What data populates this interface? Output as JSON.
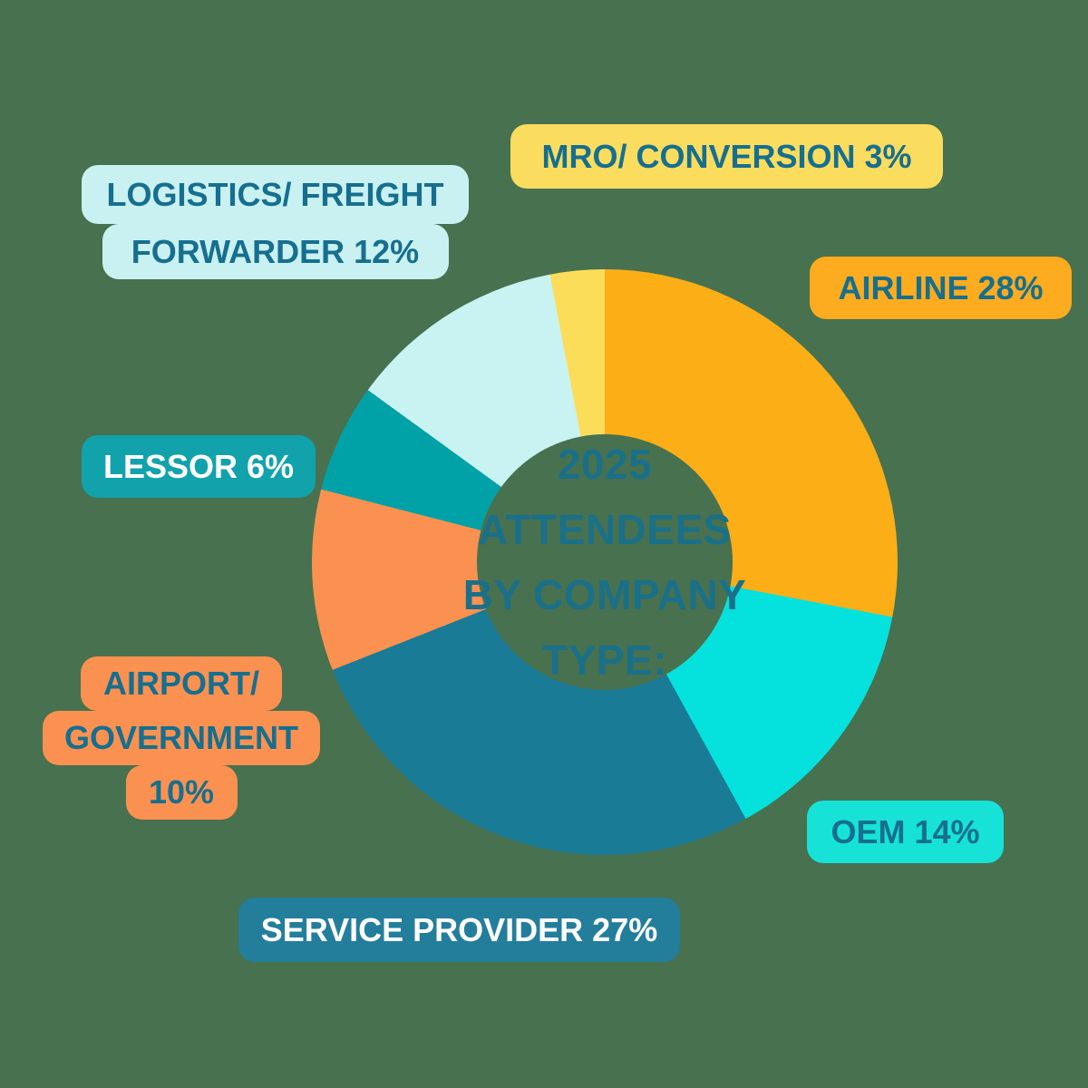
{
  "background_color": "#48714F",
  "text_colors": {
    "dark_teal": "#166F8F",
    "white": "#FFFFFF",
    "center": "#1A7089"
  },
  "chart_data": {
    "type": "pie",
    "donut": true,
    "title": "2025 ATTENDEES BY COMPANY TYPE:",
    "center_text_lines": [
      "2025",
      "ATTENDEES",
      "BY COMPANY",
      "TYPE:"
    ],
    "start_angle_deg": 0,
    "direction": "clockwise",
    "unit": "%",
    "segments": [
      {
        "label": "AIRLINE",
        "value": 28,
        "color": "#FCAE16"
      },
      {
        "label": "OEM",
        "value": 14,
        "color": "#05E1DC"
      },
      {
        "label": "SERVICE PROVIDER",
        "value": 27,
        "color": "#197B96"
      },
      {
        "label": "AIRPORT/ GOVERNMENT",
        "value": 10,
        "color": "#FB9150"
      },
      {
        "label": "LESSOR",
        "value": 6,
        "color": "#00A2A8"
      },
      {
        "label": "LOGISTICS/ FREIGHT FORWARDER",
        "value": 12,
        "color": "#C8F3F2"
      },
      {
        "label": "MRO/ CONVERSION",
        "value": 3,
        "color": "#FCDD59"
      }
    ]
  },
  "labels": {
    "mro": {
      "lines": [
        "MRO/ CONVERSION 3%"
      ],
      "bg": "#FADC5F",
      "fg": "#166F8F"
    },
    "logistics": {
      "lines": [
        "LOGISTICS/ FREIGHT",
        "FORWARDER 12%"
      ],
      "bg": "#C9F1F2",
      "fg": "#166F8F"
    },
    "airline": {
      "lines": [
        "AIRLINE 28%"
      ],
      "bg": "#FCAC1E",
      "fg": "#166F8F"
    },
    "lessor": {
      "lines": [
        "LESSOR 6%"
      ],
      "bg": "#12A2AB",
      "fg": "#FFFFFF"
    },
    "airport": {
      "lines": [
        "AIRPORT/",
        "GOVERNMENT",
        "10%"
      ],
      "bg": "#FB9150",
      "fg": "#166F8F"
    },
    "oem": {
      "lines": [
        "OEM 14%"
      ],
      "bg": "#16E2D7",
      "fg": "#166F8F"
    },
    "service": {
      "lines": [
        "SERVICE PROVIDER 27%"
      ],
      "bg": "#237E9C",
      "fg": "#FFFFFF"
    }
  }
}
